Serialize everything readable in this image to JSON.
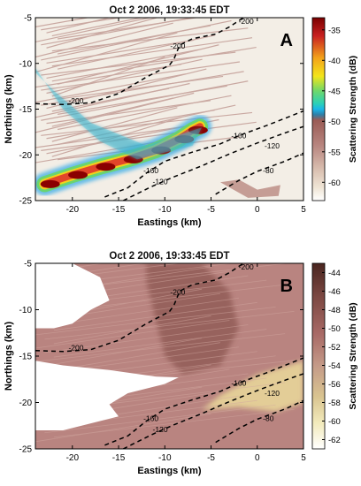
{
  "chart_data": [
    {
      "panel_label": "A",
      "type": "heatmap",
      "title": "Oct 2 2006, 19:33:45 EDT",
      "xlabel": "Eastings (km)",
      "ylabel": "Northings (km)",
      "xlim": [
        -24,
        5
      ],
      "ylim": [
        -25,
        -5
      ],
      "xticks": [
        -20,
        -15,
        -10,
        -5,
        0,
        5
      ],
      "yticks": [
        -25,
        -20,
        -15,
        -10,
        -5
      ],
      "colorbar": {
        "label": "Scattering Strength (dB)",
        "range": [
          -63,
          -33
        ],
        "ticks": [
          -35,
          -40,
          -45,
          -50,
          -55,
          -60
        ],
        "colors": {
          "high": "#7a0000",
          "mid_high": "#f3e51a",
          "mid": "#4dd48c",
          "low_mid": "#1ab6e8",
          "low": "#9a5b55",
          "lowest": "#ffffff"
        }
      },
      "contours": [
        {
          "label": "-200",
          "points": [
            [
              -24,
              -14.4
            ],
            [
              -21,
              -14.5
            ],
            [
              -18,
              -14.3
            ],
            [
              -15,
              -13.3
            ],
            [
              -12,
              -11.5
            ],
            [
              -9.5,
              -10.2
            ],
            [
              -9,
              -9.5
            ],
            [
              -8.4,
              -8.0
            ],
            [
              -7,
              -7.3
            ],
            [
              -4.5,
              -6.8
            ],
            [
              -3,
              -6.0
            ],
            [
              -1.5,
              -5.0
            ]
          ]
        },
        {
          "label": "-160",
          "points": [
            [
              -16.5,
              -24.6
            ],
            [
              -14,
              -23.6
            ],
            [
              -12,
              -22.0
            ],
            [
              -10,
              -20.7
            ],
            [
              -7,
              -19.7
            ],
            [
              -4,
              -18.8
            ],
            [
              -2,
              -17.9
            ],
            [
              1,
              -16.8
            ],
            [
              3,
              -16.0
            ],
            [
              5,
              -15.2
            ]
          ]
        },
        {
          "label": "-120",
          "points": [
            [
              -14.5,
              -25.0
            ],
            [
              -11.5,
              -23.5
            ],
            [
              -9,
              -22.4
            ],
            [
              -6,
              -21.2
            ],
            [
              -3,
              -19.9
            ],
            [
              0,
              -18.7
            ],
            [
              3,
              -17.6
            ],
            [
              5,
              -16.9
            ]
          ]
        },
        {
          "label": "-80",
          "points": [
            [
              -4.5,
              -24.3
            ],
            [
              -2,
              -22.8
            ],
            [
              0,
              -21.8
            ],
            [
              3,
              -20.7
            ],
            [
              5,
              -19.8
            ]
          ]
        }
      ],
      "contour_labels": [
        {
          "text": "-200",
          "at": [
            -1.2,
            -5.4
          ]
        },
        {
          "text": "-200",
          "at": [
            -19.6,
            -14.1
          ]
        },
        {
          "text": "-200",
          "at": [
            -8.6,
            -8.1
          ]
        },
        {
          "text": "-160",
          "at": [
            -2,
            -17.9
          ]
        },
        {
          "text": "-160",
          "at": [
            -11.5,
            -21.7
          ]
        },
        {
          "text": "-120",
          "at": [
            1.6,
            -19.0
          ]
        },
        {
          "text": "-120",
          "at": [
            -10.5,
            -22.9
          ]
        },
        {
          "text": "-80",
          "at": [
            1.2,
            -21.7
          ]
        }
      ],
      "features": [
        {
          "kind": "strong_scattering_band",
          "value_db": -34,
          "points": [
            [
              -23,
              -23.2
            ],
            [
              -20,
              -22.2
            ],
            [
              -17,
              -21.3
            ],
            [
              -14,
              -20.5
            ],
            [
              -11,
              -19.5
            ],
            [
              -8.5,
              -18.3
            ],
            [
              -7,
              -17.3
            ],
            [
              -6.2,
              -16.9
            ]
          ]
        },
        {
          "kind": "moderate_scattering_region",
          "value_db": -46,
          "area": [
            [
              -24,
              -10.5
            ],
            [
              -21,
              -15
            ],
            [
              -17,
              -18.5
            ],
            [
              -13,
              -20.5
            ],
            [
              -7,
              -19
            ],
            [
              -6,
              -17
            ],
            [
              -12,
              -19
            ],
            [
              -18,
              -16.5
            ],
            [
              -22,
              -13
            ],
            [
              -24,
              -11
            ]
          ]
        },
        {
          "kind": "weak_patch",
          "value_db": -52,
          "area": [
            [
              -4,
              -23
            ],
            [
              -2,
              -22.7
            ],
            [
              0,
              -23.8
            ],
            [
              2.5,
              -23.3
            ],
            [
              2.3,
              -24.5
            ],
            [
              -1,
              -24.7
            ]
          ]
        }
      ]
    },
    {
      "panel_label": "B",
      "type": "heatmap",
      "title": "Oct 2 2006, 19:33:45 EDT",
      "xlabel": "Eastings (km)",
      "ylabel": "Northings (km)",
      "xlim": [
        -24,
        5
      ],
      "ylim": [
        -25,
        -5
      ],
      "xticks": [
        -20,
        -15,
        -10,
        -5,
        0,
        5
      ],
      "yticks": [
        -25,
        -20,
        -15,
        -10,
        -5
      ],
      "colorbar": {
        "label": "Scattering Strength (dB)",
        "range": [
          -63,
          -43
        ],
        "ticks": [
          -44,
          -46,
          -48,
          -50,
          -52,
          -54,
          -56,
          -58,
          -60,
          -62
        ],
        "colors": {
          "high": "#4a2620",
          "mid": "#a86a66",
          "low_mid": "#d9c490",
          "low": "#f6efc2",
          "lowest": "#ffffff"
        }
      },
      "contours": [
        {
          "label": "-200",
          "points": [
            [
              -24,
              -14.4
            ],
            [
              -21,
              -14.5
            ],
            [
              -18,
              -14.3
            ],
            [
              -15,
              -13.3
            ],
            [
              -12,
              -11.5
            ],
            [
              -9.5,
              -10.2
            ],
            [
              -9,
              -9.5
            ],
            [
              -8.4,
              -8.0
            ],
            [
              -7,
              -7.3
            ],
            [
              -4.5,
              -6.8
            ],
            [
              -3,
              -6.0
            ],
            [
              -1.5,
              -5.0
            ]
          ]
        },
        {
          "label": "-160",
          "points": [
            [
              -16.5,
              -24.6
            ],
            [
              -14,
              -23.6
            ],
            [
              -12,
              -22.0
            ],
            [
              -10,
              -20.7
            ],
            [
              -7,
              -19.7
            ],
            [
              -4,
              -18.8
            ],
            [
              -2,
              -17.9
            ],
            [
              1,
              -16.8
            ],
            [
              3,
              -16.0
            ],
            [
              5,
              -15.2
            ]
          ]
        },
        {
          "label": "-120",
          "points": [
            [
              -14.5,
              -25.0
            ],
            [
              -11.5,
              -23.5
            ],
            [
              -9,
              -22.4
            ],
            [
              -6,
              -21.2
            ],
            [
              -3,
              -19.9
            ],
            [
              0,
              -18.7
            ],
            [
              3,
              -17.6
            ],
            [
              5,
              -16.9
            ]
          ]
        },
        {
          "label": "-80",
          "points": [
            [
              -4.5,
              -24.3
            ],
            [
              -2,
              -22.8
            ],
            [
              0,
              -21.8
            ],
            [
              3,
              -20.7
            ],
            [
              5,
              -19.8
            ]
          ]
        }
      ],
      "contour_labels": [
        {
          "text": "-200",
          "at": [
            -1.2,
            -5.4
          ]
        },
        {
          "text": "-200",
          "at": [
            -19.6,
            -14.1
          ]
        },
        {
          "text": "-200",
          "at": [
            -8.6,
            -8.1
          ]
        },
        {
          "text": "-160",
          "at": [
            -2,
            -17.9
          ]
        },
        {
          "text": "-160",
          "at": [
            -11.5,
            -21.7
          ]
        },
        {
          "text": "-120",
          "at": [
            1.6,
            -19.0
          ]
        },
        {
          "text": "-120",
          "at": [
            -10.5,
            -22.9
          ]
        },
        {
          "text": "-80",
          "at": [
            1.2,
            -21.7
          ]
        }
      ],
      "features": [
        {
          "kind": "no_data_region",
          "value_db": null,
          "area": [
            [
              -24,
              -5
            ],
            [
              -20,
              -5
            ],
            [
              -17,
              -6.5
            ],
            [
              -16,
              -9
            ],
            [
              -18,
              -10
            ],
            [
              -20,
              -11.5
            ],
            [
              -22,
              -12
            ],
            [
              -24,
              -12
            ]
          ]
        },
        {
          "kind": "no_data_region",
          "value_db": null,
          "area": [
            [
              -24,
              -15.5
            ],
            [
              -21,
              -16
            ],
            [
              -16,
              -16.5
            ],
            [
              -11,
              -17.2
            ],
            [
              -8.5,
              -17.3
            ],
            [
              -10,
              -18
            ],
            [
              -14,
              -19
            ],
            [
              -16,
              -20.2
            ],
            [
              -15,
              -21.5
            ],
            [
              -19,
              -22.5
            ],
            [
              -21,
              -23
            ],
            [
              -24,
              -23
            ]
          ]
        },
        {
          "kind": "high_scattering_region",
          "value_db": -45,
          "area": [
            [
              -12,
              -5
            ],
            [
              -6,
              -5
            ],
            [
              -3,
              -8
            ],
            [
              -2,
              -12
            ],
            [
              -4,
              -16
            ],
            [
              -8,
              -17
            ],
            [
              -10,
              -15
            ],
            [
              -11,
              -11
            ],
            [
              -12,
              -7
            ]
          ]
        },
        {
          "kind": "low_scattering_region",
          "value_db": -58,
          "area": [
            [
              0,
              -17
            ],
            [
              5,
              -15.5
            ],
            [
              5,
              -20
            ],
            [
              2,
              -21
            ],
            [
              -2,
              -20.5
            ],
            [
              -6,
              -20.8
            ],
            [
              -4,
              -19.2
            ]
          ]
        }
      ]
    }
  ]
}
